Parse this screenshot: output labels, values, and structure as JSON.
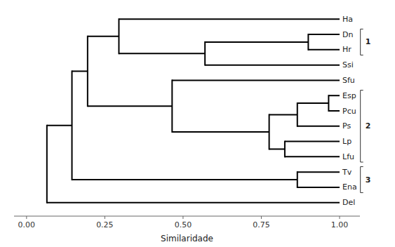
{
  "chart_data": {
    "type": "dendrogram",
    "xlabel": "Similaridade",
    "xlim": [
      -0.04,
      1.065
    ],
    "xticks": [
      {
        "value": 0.0,
        "label": "0.00"
      },
      {
        "value": 0.25,
        "label": "0.25"
      },
      {
        "value": 0.5,
        "label": "0.50"
      },
      {
        "value": 0.75,
        "label": "0.75"
      },
      {
        "value": 1.0,
        "label": "1.00"
      }
    ],
    "color": "#000000",
    "categories": [
      "Ha",
      "Dn",
      "Hr",
      "Ssi",
      "Sfu",
      "Esp",
      "Pcu",
      "Ps",
      "Lp",
      "Lfu",
      "Tv",
      "Ena",
      "Del"
    ],
    "tree": {
      "value": 0.065,
      "children": [
        {
          "value": 0.145,
          "children": [
            {
              "value": 0.195,
              "children": [
                {
                  "value": 0.295,
                  "children": [
                    {
                      "leaf": 0,
                      "value": 1.0
                    },
                    {
                      "value": 0.57,
                      "children": [
                        {
                          "value": 0.9,
                          "children": [
                            {
                              "leaf": 1,
                              "value": 1.0
                            },
                            {
                              "leaf": 2,
                              "value": 1.0
                            }
                          ]
                        },
                        {
                          "leaf": 3,
                          "value": 1.0
                        }
                      ]
                    }
                  ]
                },
                {
                  "value": 0.465,
                  "children": [
                    {
                      "leaf": 4,
                      "value": 1.0
                    },
                    {
                      "value": 0.775,
                      "children": [
                        {
                          "value": 0.865,
                          "children": [
                            {
                              "value": 0.965,
                              "children": [
                                {
                                  "leaf": 5,
                                  "value": 1.0
                                },
                                {
                                  "leaf": 6,
                                  "value": 1.0
                                }
                              ]
                            },
                            {
                              "leaf": 7,
                              "value": 1.0
                            }
                          ]
                        },
                        {
                          "value": 0.825,
                          "children": [
                            {
                              "leaf": 8,
                              "value": 1.0
                            },
                            {
                              "leaf": 9,
                              "value": 1.0
                            }
                          ]
                        }
                      ]
                    }
                  ]
                }
              ]
            },
            {
              "value": 0.865,
              "children": [
                {
                  "leaf": 10,
                  "value": 1.0
                },
                {
                  "leaf": 11,
                  "value": 1.0
                }
              ]
            }
          ]
        },
        {
          "leaf": 12,
          "value": 1.0
        }
      ]
    },
    "groups": [
      {
        "label": "1",
        "first": 1,
        "last": 2
      },
      {
        "label": "2",
        "first": 5,
        "last": 9
      },
      {
        "label": "3",
        "first": 10,
        "last": 11
      }
    ]
  }
}
